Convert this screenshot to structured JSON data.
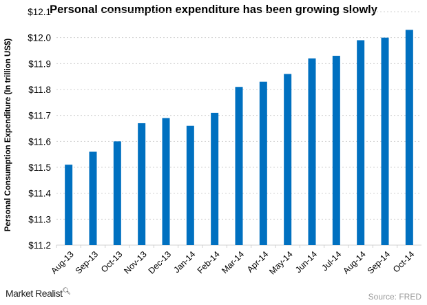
{
  "chart_data": {
    "type": "bar",
    "title": "Personal consumption expenditure has been growing slowly",
    "ylabel": "Personal Consumption Expenditure (In trillion US$)",
    "xlabel": "",
    "categories": [
      "Aug-13",
      "Sep-13",
      "Oct-13",
      "Nov-13",
      "Dec-13",
      "Jan-14",
      "Feb-14",
      "Mar-14",
      "Apr-14",
      "May-14",
      "Jun-14",
      "Jul-14",
      "Aug-14",
      "Sep-14",
      "Oct-14"
    ],
    "values": [
      11.51,
      11.56,
      11.6,
      11.67,
      11.69,
      11.66,
      11.71,
      11.81,
      11.83,
      11.86,
      11.92,
      11.93,
      11.99,
      12.0,
      12.03
    ],
    "ylim": [
      11.2,
      12.1
    ],
    "yticks": [
      11.2,
      11.3,
      11.4,
      11.5,
      11.6,
      11.7,
      11.8,
      11.9,
      12.0,
      12.1
    ],
    "ytick_labels": [
      "$11.2",
      "$11.3",
      "$11.4",
      "$11.5",
      "$11.6",
      "$11.7",
      "$11.8",
      "$11.9",
      "$12.0",
      "$12.1"
    ],
    "grid": "horizontal dotted",
    "bar_color": "#0070c0"
  },
  "footer": {
    "brand": "Market Realist",
    "source": "Source: FRED"
  }
}
